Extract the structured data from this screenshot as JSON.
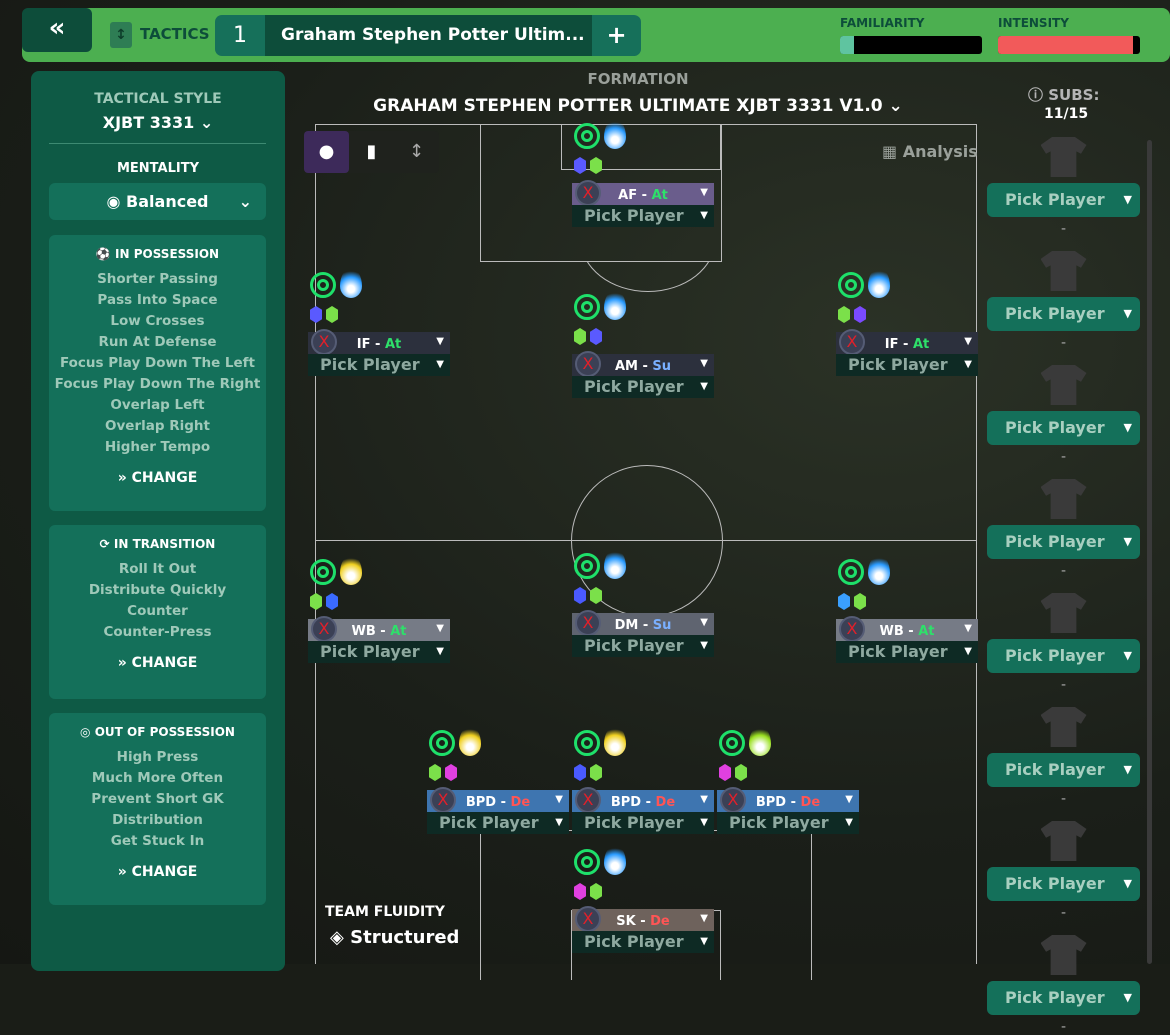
{
  "topbar": {
    "back_icon": "double-chevron-left",
    "tactics_label": "TACTICS",
    "tactic_slot": "1",
    "tactic_name": "Graham Stephen Potter Ultim...",
    "add_label": "+",
    "familiarity_label": "FAMILIARITY",
    "familiarity_value": 0.1,
    "intensity_label": "INTENSITY",
    "intensity_value": 0.95,
    "colors": {
      "bar": "#4caf50",
      "familiarity": "#5fc4a0",
      "intensity": "#f25a5a"
    }
  },
  "sidebar": {
    "style_label": "TACTICAL STYLE",
    "style_value": "XJBT 3331",
    "mentality_label": "MENTALITY",
    "mentality_value": "Balanced",
    "in_possession": {
      "title": "IN POSSESSION",
      "items": [
        "Shorter Passing",
        "Pass Into Space",
        "Low Crosses",
        "Run At Defense",
        "Focus Play Down The Left",
        "Focus Play Down The Right",
        "Overlap Left",
        "Overlap Right",
        "Higher Tempo"
      ],
      "change": "CHANGE"
    },
    "in_transition": {
      "title": "IN TRANSITION",
      "items": [
        "Roll It Out",
        "Distribute Quickly",
        "Counter",
        "Counter-Press"
      ],
      "change": "CHANGE"
    },
    "out_of_possession": {
      "title": "OUT OF POSSESSION",
      "items": [
        "High Press",
        "Much More Often",
        "Prevent Short GK",
        "Distribution",
        "Get Stuck In"
      ],
      "change": "CHANGE"
    }
  },
  "formation": {
    "label": "FORMATION",
    "name": "GRAHAM STEPHEN POTTER ULTIMATE XJBT 3331 V1.0",
    "analysis": "Analysis",
    "fluidity_label": "TEAM FLUIDITY",
    "fluidity_value": "Structured"
  },
  "players": [
    {
      "role": "AF",
      "duty": "At",
      "pick": "Pick Player",
      "header": "#6a5d8c",
      "flame": "#2a9bff",
      "gems": [
        "#5a5aff",
        "#7be04a"
      ]
    },
    {
      "role": "IF",
      "duty": "At",
      "pick": "Pick Player",
      "header": "#2c303d",
      "flame": "#2a9bff",
      "gems": [
        "#5a5aff",
        "#7be04a"
      ]
    },
    {
      "role": "AM",
      "duty": "Su",
      "pick": "Pick Player",
      "header": "#2c303d",
      "flame": "#2a9bff",
      "gems": [
        "#7be04a",
        "#5a5aff"
      ]
    },
    {
      "role": "IF",
      "duty": "At",
      "pick": "Pick Player",
      "header": "#2c303d",
      "flame": "#2a9bff",
      "gems": [
        "#7be04a",
        "#7a4aff"
      ]
    },
    {
      "role": "WB",
      "duty": "At",
      "pick": "Pick Player",
      "header": "#767b86",
      "flame": "#f0d020",
      "gems": [
        "#7be04a",
        "#3a6aff"
      ]
    },
    {
      "role": "DM",
      "duty": "Su",
      "pick": "Pick Player",
      "header": "#5f6470",
      "flame": "#2a9bff",
      "gems": [
        "#4a5aff",
        "#7be04a"
      ]
    },
    {
      "role": "WB",
      "duty": "At",
      "pick": "Pick Player",
      "header": "#767b86",
      "flame": "#2a9bff",
      "gems": [
        "#3aa0ff",
        "#7be04a"
      ]
    },
    {
      "role": "BPD",
      "duty": "De",
      "pick": "Pick Player",
      "header": "#3e75b0",
      "flame": "#f0d020",
      "gems": [
        "#7be04a",
        "#e040e0"
      ]
    },
    {
      "role": "BPD",
      "duty": "De",
      "pick": "Pick Player",
      "header": "#3e75b0",
      "flame": "#f0d020",
      "gems": [
        "#4a5aff",
        "#7be04a"
      ]
    },
    {
      "role": "BPD",
      "duty": "De",
      "pick": "Pick Player",
      "header": "#3e75b0",
      "flame": "#9ae020",
      "gems": [
        "#e040e0",
        "#7be04a"
      ]
    },
    {
      "role": "SK",
      "duty": "De",
      "pick": "Pick Player",
      "header": "#6e625c",
      "flame": "#2a9bff",
      "gems": [
        "#e040e0",
        "#7be04a"
      ]
    }
  ],
  "duty_colors": {
    "At": "#2ee06a",
    "Su": "#7ab0ff",
    "De": "#ff5555"
  },
  "subs": {
    "label": "SUBS:",
    "count": "11/15",
    "items": [
      "Pick Player",
      "Pick Player",
      "Pick Player",
      "Pick Player",
      "Pick Player",
      "Pick Player",
      "Pick Player",
      "Pick Player"
    ],
    "empty": "-"
  }
}
